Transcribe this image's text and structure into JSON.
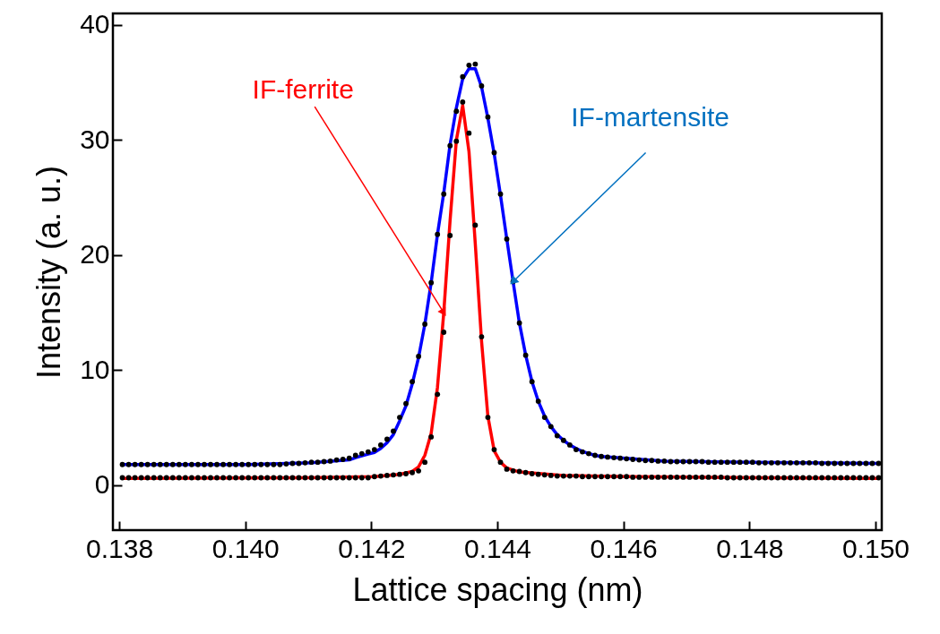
{
  "chart_data": {
    "type": "line",
    "xlabel": "Lattice spacing (nm)",
    "ylabel": "Intensity (a. u.)",
    "xlim": [
      0.1379,
      0.1501
    ],
    "ylim": [
      -3.9,
      41
    ],
    "xticks": [
      0.138,
      {
        "value": 0.14,
        "label": "0.140"
      },
      0.142,
      0.144,
      0.146,
      0.148,
      {
        "value": 0.15,
        "label": "0.150"
      }
    ],
    "yticks": [
      0,
      10,
      20,
      30,
      40
    ],
    "x": [
      0.13805,
      0.13815,
      0.13825,
      0.13835,
      0.13845,
      0.13855,
      0.13865,
      0.13875,
      0.13885,
      0.13895,
      0.13905,
      0.13915,
      0.13925,
      0.13935,
      0.13945,
      0.13955,
      0.13965,
      0.13975,
      0.13985,
      0.13995,
      0.14005,
      0.14015,
      0.14025,
      0.14035,
      0.14045,
      0.14055,
      0.14065,
      0.14075,
      0.14085,
      0.14095,
      0.14105,
      0.14115,
      0.14125,
      0.14135,
      0.14145,
      0.14155,
      0.14165,
      0.14175,
      0.14185,
      0.14195,
      0.14205,
      0.14215,
      0.14225,
      0.14235,
      0.14245,
      0.14255,
      0.14265,
      0.14275,
      0.14285,
      0.14295,
      0.14305,
      0.14315,
      0.14325,
      0.14335,
      0.14345,
      0.14355,
      0.14365,
      0.14375,
      0.14385,
      0.14395,
      0.14405,
      0.14415,
      0.14425,
      0.14435,
      0.14445,
      0.14455,
      0.14465,
      0.14475,
      0.14485,
      0.14495,
      0.14505,
      0.14515,
      0.14525,
      0.14535,
      0.14545,
      0.14555,
      0.14565,
      0.14575,
      0.14585,
      0.14595,
      0.14605,
      0.14615,
      0.14625,
      0.14635,
      0.14645,
      0.14655,
      0.14665,
      0.14675,
      0.14685,
      0.14695,
      0.14705,
      0.14715,
      0.14725,
      0.14735,
      0.14745,
      0.14755,
      0.14765,
      0.14775,
      0.14785,
      0.14795,
      0.14805,
      0.14815,
      0.14825,
      0.14835,
      0.14845,
      0.14855,
      0.14865,
      0.14875,
      0.14885,
      0.14895,
      0.14905,
      0.14915,
      0.14925,
      0.14935,
      0.14945,
      0.14955,
      0.14965,
      0.14975,
      0.14985,
      0.14995,
      0.15005
    ],
    "series": [
      {
        "color": "#0000ff",
        "x": [
          0.13805,
          0.14005,
          0.14105,
          0.14165,
          0.14175,
          0.14185,
          0.14195,
          0.14205,
          0.14215,
          0.14225,
          0.14235,
          0.14245,
          0.14255,
          0.14265,
          0.14275,
          0.14285,
          0.14295,
          0.14305,
          0.14315,
          0.14325,
          0.14335,
          0.14345,
          0.14355,
          0.14365,
          0.14375,
          0.14385,
          0.14395,
          0.14405,
          0.14415,
          0.14425,
          0.14435,
          0.14445,
          0.14455,
          0.14465,
          0.14475,
          0.14485,
          0.14495,
          0.14505,
          0.14515,
          0.14525,
          0.14535,
          0.14545,
          0.14555,
          0.14565,
          0.14665,
          0.14805,
          0.15005
        ],
        "values": [
          1.8,
          1.8,
          1.95,
          2.2,
          2.4,
          2.55,
          2.7,
          2.85,
          3.2,
          3.7,
          4.4,
          5.6,
          6.9,
          8.8,
          11.1,
          14.0,
          17.6,
          21.8,
          25.4,
          29.6,
          32.8,
          35.3,
          36.2,
          36.2,
          34.6,
          31.9,
          28.8,
          25.2,
          21.4,
          17.7,
          14.1,
          11.3,
          9.0,
          7.3,
          6.0,
          5.1,
          4.4,
          3.9,
          3.5,
          3.2,
          2.95,
          2.75,
          2.6,
          2.5,
          2.1,
          2.0,
          1.9
        ]
      },
      {
        "color": "#ff0000",
        "x": [
          0.13805,
          0.14105,
          0.14205,
          0.14245,
          0.14265,
          0.14275,
          0.14285,
          0.14295,
          0.14305,
          0.14315,
          0.14325,
          0.14335,
          0.14345,
          0.14355,
          0.14365,
          0.14375,
          0.14385,
          0.14395,
          0.14405,
          0.14415,
          0.14435,
          0.14505,
          0.14605,
          0.14805,
          0.15005
        ],
        "values": [
          0.6,
          0.65,
          0.75,
          0.95,
          1.2,
          1.6,
          2.6,
          4.5,
          8.5,
          15,
          23,
          30,
          33,
          29,
          21,
          12.5,
          6,
          3,
          2,
          1.5,
          1.15,
          0.85,
          0.75,
          0.65,
          0.6
        ]
      },
      {
        "type": "scatter",
        "color": "#000000",
        "values": [
          1.8,
          1.8,
          1.8,
          1.8,
          1.8,
          1.8,
          1.8,
          1.8,
          1.8,
          1.8,
          1.8,
          1.8,
          1.8,
          1.8,
          1.8,
          1.8,
          1.8,
          1.8,
          1.8,
          1.8,
          1.8,
          1.8,
          1.8,
          1.8,
          1.8,
          1.8,
          1.85,
          1.9,
          1.9,
          1.95,
          2.0,
          2.0,
          2.05,
          2.1,
          2.2,
          2.25,
          2.35,
          2.6,
          2.75,
          2.9,
          3.1,
          3.5,
          4.0,
          4.7,
          5.9,
          7.1,
          9.0,
          11.2,
          14.0,
          17.6,
          21.8,
          25.3,
          29.5,
          32.5,
          35.5,
          36.5,
          36.6,
          34.7,
          32.0,
          28.9,
          25.3,
          21.4,
          17.7,
          14.1,
          11.3,
          9.0,
          7.3,
          5.9,
          5.1,
          4.3,
          3.9,
          3.5,
          3.1,
          2.9,
          2.75,
          2.6,
          2.5,
          2.45,
          2.4,
          2.35,
          2.3,
          2.25,
          2.2,
          2.15,
          2.15,
          2.1,
          2.1,
          2.05,
          2.05,
          2.05,
          2.05,
          2.05,
          2.05,
          2.0,
          2.0,
          2.0,
          2.0,
          2.0,
          2.0,
          2.0,
          2.0,
          1.95,
          1.95,
          1.95,
          1.95,
          1.95,
          1.95,
          1.95,
          1.95,
          1.95,
          1.95,
          1.9,
          1.9,
          1.9,
          1.9,
          1.9,
          1.9,
          1.9,
          1.9,
          1.9,
          1.9
        ]
      },
      {
        "type": "scatter",
        "color": "#000000",
        "values": [
          0.65,
          0.65,
          0.65,
          0.65,
          0.65,
          0.65,
          0.65,
          0.65,
          0.65,
          0.65,
          0.65,
          0.65,
          0.65,
          0.65,
          0.65,
          0.65,
          0.65,
          0.65,
          0.65,
          0.65,
          0.65,
          0.65,
          0.65,
          0.65,
          0.65,
          0.65,
          0.65,
          0.65,
          0.65,
          0.65,
          0.65,
          0.65,
          0.65,
          0.65,
          0.65,
          0.65,
          0.65,
          0.65,
          0.65,
          0.65,
          0.75,
          0.8,
          0.85,
          0.9,
          0.95,
          1.0,
          1.1,
          1.25,
          2.0,
          4.2,
          7.9,
          13.3,
          21.7,
          29.9,
          33.3,
          30.6,
          22.6,
          12.9,
          5.9,
          3.1,
          2.0,
          1.4,
          1.25,
          1.2,
          1.1,
          1.0,
          0.95,
          0.9,
          0.85,
          0.8,
          0.8,
          0.8,
          0.8,
          0.75,
          0.75,
          0.75,
          0.75,
          0.75,
          0.75,
          0.75,
          0.75,
          0.7,
          0.7,
          0.7,
          0.7,
          0.7,
          0.7,
          0.7,
          0.7,
          0.7,
          0.7,
          0.7,
          0.7,
          0.7,
          0.7,
          0.7,
          0.65,
          0.65,
          0.65,
          0.65,
          0.65,
          0.65,
          0.65,
          0.65,
          0.65,
          0.65,
          0.65,
          0.65,
          0.65,
          0.65,
          0.65,
          0.65,
          0.65,
          0.65,
          0.65,
          0.65,
          0.65,
          0.65,
          0.65,
          0.65,
          0.65
        ]
      }
    ],
    "annotations": [
      {
        "text": "IF-ferrite",
        "x": 0.14315,
        "y": 15
      },
      {
        "text": "IF-martensite",
        "x": 0.14425,
        "y": 17.7
      }
    ]
  }
}
